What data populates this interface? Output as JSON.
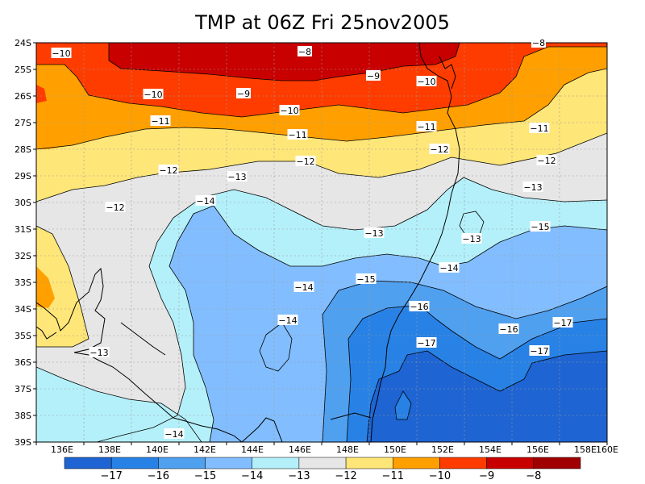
{
  "title": "TMP at 06Z Fri 25nov2005",
  "lat_ticks": [
    "24S",
    "25S",
    "26S",
    "27S",
    "28S",
    "29S",
    "30S",
    "31S",
    "32S",
    "33S",
    "34S",
    "35S",
    "36S",
    "37S",
    "38S",
    "39S"
  ],
  "lon_ticks": [
    "136E",
    "138E",
    "140E",
    "142E",
    "144E",
    "146E",
    "148E",
    "150E",
    "152E",
    "154E",
    "156E",
    "158E",
    "160E"
  ],
  "contour_labels": [
    "-8",
    "-8",
    "-9",
    "-9",
    "-10",
    "-10",
    "-10",
    "-10",
    "-11",
    "-11",
    "-11",
    "-11",
    "-12",
    "-12",
    "-12",
    "-12",
    "-12",
    "-13",
    "-13",
    "-13",
    "-13",
    "-13",
    "-14",
    "-14",
    "-14",
    "-14",
    "-14",
    "-15",
    "-15",
    "-16",
    "-16",
    "-17",
    "-17",
    "-17"
  ],
  "colorbar": {
    "labels": [
      "-17",
      "-16",
      "-15",
      "-14",
      "-13",
      "-12",
      "-11",
      "-10",
      "-9",
      "-8"
    ],
    "colors": [
      "#1e64d2",
      "#2882e6",
      "#50a0f0",
      "#82beff",
      "#b4f0fa",
      "#e6e6e6",
      "#ffe678",
      "#ffa000",
      "#ff3c00",
      "#c80000",
      "#a00000"
    ]
  },
  "colors": {
    "c17": "#1e64d2",
    "c16": "#2882e6",
    "c15": "#50a0f0",
    "c14": "#82beff",
    "c13": "#b4f0fa",
    "c12": "#e6e6e6",
    "c11": "#ffe678",
    "c10": "#ffa000",
    "c9": "#ff3c00",
    "c8": "#c80000"
  }
}
